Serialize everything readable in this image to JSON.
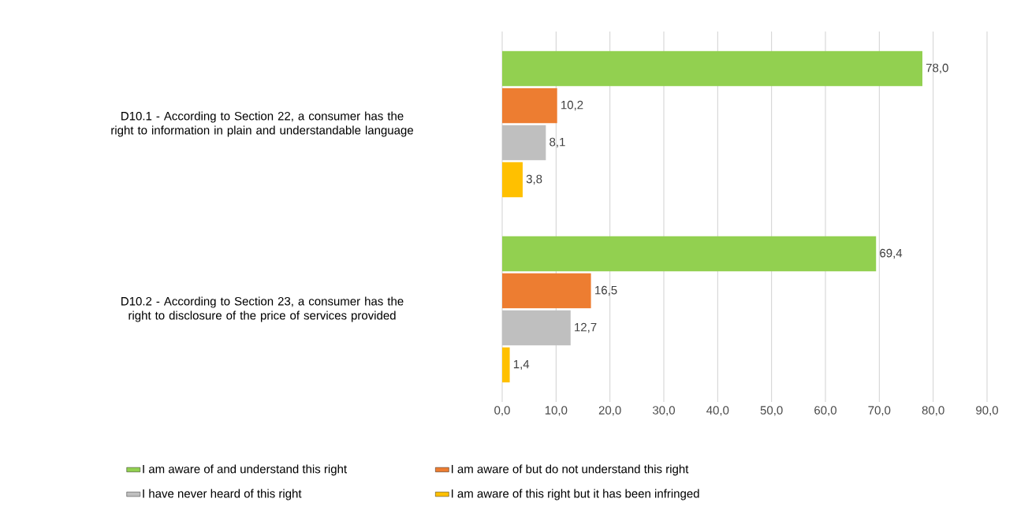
{
  "chart_data": {
    "type": "bar",
    "orientation": "horizontal",
    "categories": [
      "D10.1 - According to Section 22, a consumer has the right to information in plain and understandable language",
      "D10.2 - According to Section 23, a consumer has the right to disclosure of the price of services provided"
    ],
    "series": [
      {
        "name": "I am aware of and understand this right",
        "color": "#92d050",
        "values": [
          78.0,
          69.4
        ],
        "value_labels": [
          "78,0",
          "69,4"
        ]
      },
      {
        "name": "I am aware of but do not understand this right",
        "color": "#ed7d31",
        "values": [
          10.2,
          16.5
        ],
        "value_labels": [
          "10,2",
          "16,5"
        ]
      },
      {
        "name": "I have never heard of this right",
        "color": "#bfbfbf",
        "values": [
          8.1,
          12.7
        ],
        "value_labels": [
          "8,1",
          "12,7"
        ]
      },
      {
        "name": "I am aware of this right but it has been infringed",
        "color": "#ffc000",
        "values": [
          3.8,
          1.4
        ],
        "value_labels": [
          "3,8",
          "1,4"
        ]
      }
    ],
    "xlim": [
      0,
      90
    ],
    "xticks": [
      {
        "value": 0,
        "label": "0,0"
      },
      {
        "value": 10,
        "label": "10,0"
      },
      {
        "value": 20,
        "label": "20,0"
      },
      {
        "value": 30,
        "label": "30,0"
      },
      {
        "value": 40,
        "label": "40,0"
      },
      {
        "value": 50,
        "label": "50,0"
      },
      {
        "value": 60,
        "label": "60,0"
      },
      {
        "value": 70,
        "label": "70,0"
      },
      {
        "value": 80,
        "label": "80,0"
      },
      {
        "value": 90,
        "label": "90,0"
      }
    ],
    "grid": "x",
    "legend": "bottom"
  }
}
